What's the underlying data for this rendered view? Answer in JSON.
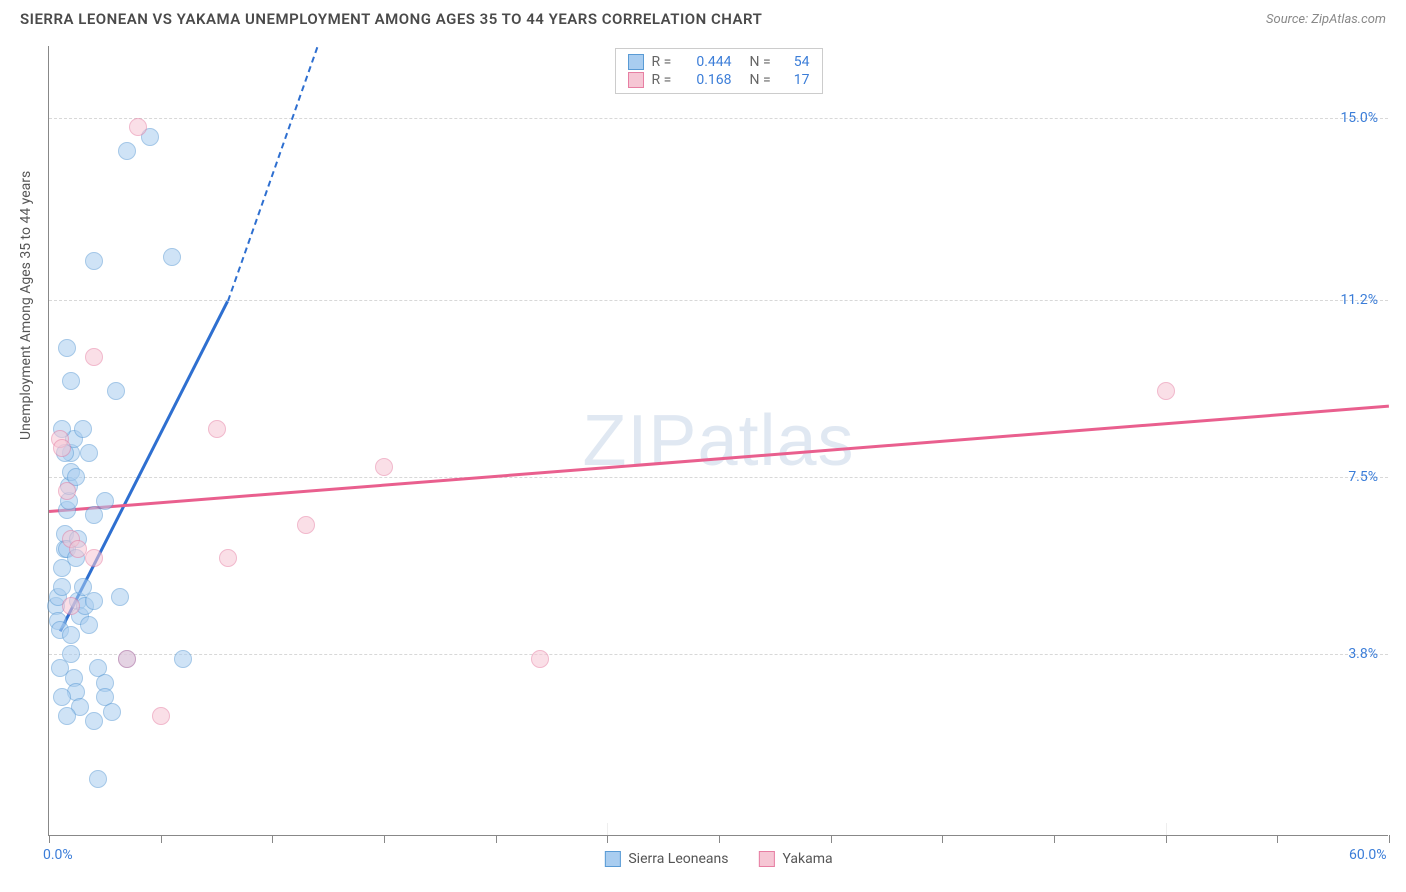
{
  "header": {
    "title": "SIERRA LEONEAN VS YAKAMA UNEMPLOYMENT AMONG AGES 35 TO 44 YEARS CORRELATION CHART",
    "source": "Source: ZipAtlas.com"
  },
  "watermark": "ZIPatlas",
  "chart": {
    "type": "scatter",
    "background_color": "#ffffff",
    "grid_color": "#d8d8d8",
    "axis_color": "#888888",
    "y_axis_title": "Unemployment Among Ages 35 to 44 years",
    "xlim": [
      0,
      60
    ],
    "ylim": [
      0,
      16.5
    ],
    "x_ticks": [
      0,
      60
    ],
    "x_tick_labels": [
      "0.0%",
      "60.0%"
    ],
    "x_minor_ticks": [
      5,
      10,
      15,
      20,
      25,
      30,
      35,
      40,
      45,
      50,
      55
    ],
    "y_ticks": [
      3.8,
      7.5,
      11.2,
      15.0
    ],
    "y_tick_labels": [
      "3.8%",
      "7.5%",
      "11.2%",
      "15.0%"
    ],
    "tick_label_color": "#3b7dd8",
    "tick_label_fontsize": 14,
    "axis_title_fontsize": 14,
    "marker_radius": 9,
    "marker_opacity": 0.55,
    "series": [
      {
        "name": "Sierra Leoneans",
        "color_fill": "#a9cdf0",
        "color_stroke": "#5a9bd5",
        "r": "0.444",
        "n": "54",
        "points": [
          [
            0.3,
            4.8
          ],
          [
            0.4,
            5.0
          ],
          [
            0.4,
            4.5
          ],
          [
            0.5,
            4.3
          ],
          [
            0.6,
            5.2
          ],
          [
            0.6,
            5.6
          ],
          [
            0.7,
            6.0
          ],
          [
            0.7,
            6.3
          ],
          [
            0.8,
            6.0
          ],
          [
            0.8,
            6.8
          ],
          [
            0.9,
            7.0
          ],
          [
            0.9,
            7.3
          ],
          [
            1.0,
            7.6
          ],
          [
            1.0,
            8.0
          ],
          [
            1.1,
            8.3
          ],
          [
            1.2,
            7.5
          ],
          [
            1.2,
            5.8
          ],
          [
            1.3,
            4.9
          ],
          [
            1.4,
            4.6
          ],
          [
            1.5,
            5.2
          ],
          [
            1.6,
            4.8
          ],
          [
            1.8,
            4.4
          ],
          [
            2.0,
            4.9
          ],
          [
            2.2,
            3.5
          ],
          [
            2.5,
            3.2
          ],
          [
            2.5,
            2.9
          ],
          [
            1.0,
            3.8
          ],
          [
            1.1,
            3.3
          ],
          [
            1.2,
            3.0
          ],
          [
            1.4,
            2.7
          ],
          [
            0.5,
            3.5
          ],
          [
            0.6,
            2.9
          ],
          [
            0.8,
            2.5
          ],
          [
            2.0,
            2.4
          ],
          [
            2.8,
            2.6
          ],
          [
            2.2,
            1.2
          ],
          [
            3.0,
            9.3
          ],
          [
            3.5,
            14.3
          ],
          [
            4.5,
            14.6
          ],
          [
            2.0,
            12.0
          ],
          [
            0.8,
            10.2
          ],
          [
            1.0,
            9.5
          ],
          [
            1.5,
            8.5
          ],
          [
            1.8,
            8.0
          ],
          [
            2.5,
            7.0
          ],
          [
            6.0,
            3.7
          ],
          [
            3.5,
            3.7
          ],
          [
            2.0,
            6.7
          ],
          [
            1.3,
            6.2
          ],
          [
            1.0,
            4.2
          ],
          [
            0.6,
            8.5
          ],
          [
            0.7,
            8.0
          ],
          [
            5.5,
            12.1
          ],
          [
            3.2,
            5.0
          ]
        ],
        "trend": {
          "x1": 0.5,
          "y1": 4.3,
          "x2": 8.0,
          "y2": 11.2,
          "dash_x2": 12.0,
          "dash_y2": 16.5,
          "color": "#2e6fd0",
          "width": 2.5
        }
      },
      {
        "name": "Yakama",
        "color_fill": "#f6c6d4",
        "color_stroke": "#e77fa3",
        "r": "0.168",
        "n": "17",
        "points": [
          [
            0.5,
            8.3
          ],
          [
            0.6,
            8.1
          ],
          [
            0.8,
            7.2
          ],
          [
            1.0,
            6.2
          ],
          [
            1.3,
            6.0
          ],
          [
            2.0,
            5.8
          ],
          [
            1.0,
            4.8
          ],
          [
            3.5,
            3.7
          ],
          [
            2.0,
            10.0
          ],
          [
            4.0,
            14.8
          ],
          [
            5.0,
            2.5
          ],
          [
            7.5,
            8.5
          ],
          [
            8.0,
            5.8
          ],
          [
            11.5,
            6.5
          ],
          [
            15.0,
            7.7
          ],
          [
            22.0,
            3.7
          ],
          [
            50.0,
            9.3
          ]
        ],
        "trend": {
          "x1": 0,
          "y1": 6.8,
          "x2": 60,
          "y2": 9.0,
          "color": "#e95f8e",
          "width": 2.5
        }
      }
    ]
  },
  "legend_top": {
    "border_color": "#cccccc",
    "rows": [
      {
        "swatch_fill": "#a9cdf0",
        "swatch_stroke": "#5a9bd5",
        "r_label": "R =",
        "r_val": "0.444",
        "n_label": "N =",
        "n_val": "54"
      },
      {
        "swatch_fill": "#f6c6d4",
        "swatch_stroke": "#e77fa3",
        "r_label": "R =",
        "r_val": "0.168",
        "n_label": "N =",
        "n_val": "17"
      }
    ]
  },
  "legend_bottom": {
    "items": [
      {
        "swatch_fill": "#a9cdf0",
        "swatch_stroke": "#5a9bd5",
        "label": "Sierra Leoneans"
      },
      {
        "swatch_fill": "#f6c6d4",
        "swatch_stroke": "#e77fa3",
        "label": "Yakama"
      }
    ]
  }
}
